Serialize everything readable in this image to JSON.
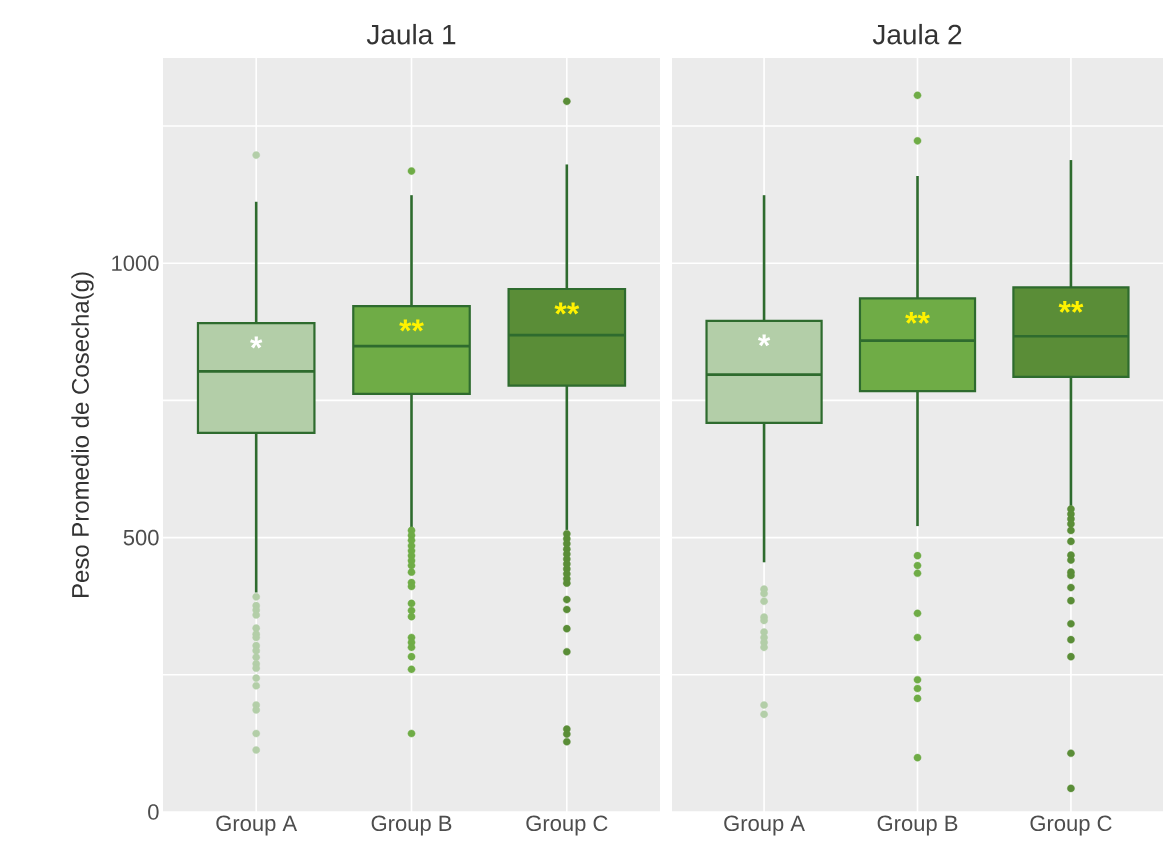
{
  "chart_data": [
    {
      "type": "box",
      "title": "Jaula 1",
      "ylabel": "Peso Promedio de Cosecha(g)",
      "categories": [
        "Group  A",
        "Group  B",
        "Group  C"
      ],
      "colors": [
        "#b3cea8",
        "#6fac46",
        "#5a8d37"
      ],
      "boxes": [
        {
          "low": 400,
          "q1": 691,
          "median": 803,
          "q3": 891,
          "high": 1112,
          "outliers": [
            1197,
            392,
            376,
            368,
            359,
            335,
            324,
            318,
            303,
            294,
            282,
            270,
            262,
            244,
            230,
            195,
            186,
            143,
            113
          ]
        },
        {
          "low": 519,
          "q1": 762,
          "median": 849,
          "q3": 922,
          "high": 1124,
          "outliers": [
            1168,
            513,
            504,
            495,
            485,
            476,
            467,
            458,
            449,
            437,
            418,
            411,
            380,
            367,
            356,
            318,
            309,
            300,
            283,
            260,
            143
          ]
        },
        {
          "low": 514,
          "q1": 777,
          "median": 869,
          "q3": 953,
          "high": 1180,
          "outliers": [
            1295,
            507,
            498,
            489,
            479,
            470,
            461,
            452,
            443,
            434,
            425,
            417,
            387,
            369,
            334,
            292,
            151,
            142,
            128
          ]
        }
      ],
      "annotations": [
        "*",
        "**",
        "**"
      ],
      "ylim": [
        0,
        1374
      ],
      "yticks": [
        0,
        {
          "value": 250,
          "label": null
        },
        500,
        {
          "value": 750,
          "label": null
        },
        1000,
        {
          "value": 1250,
          "label": null
        }
      ],
      "grid": true
    },
    {
      "type": "box",
      "title": "Jaula 2",
      "categories": [
        "Group  A",
        "Group  B",
        "Group  C"
      ],
      "colors": [
        "#b3cea8",
        "#6fac46",
        "#5a8d37"
      ],
      "boxes": [
        {
          "low": 455,
          "q1": 709,
          "median": 797,
          "q3": 895,
          "high": 1124,
          "outliers": [
            406,
            398,
            384,
            355,
            349,
            328,
            318,
            309,
            300,
            195,
            178
          ]
        },
        {
          "low": 521,
          "q1": 767,
          "median": 859,
          "q3": 936,
          "high": 1159,
          "outliers": [
            1306,
            1223,
            467,
            449,
            435,
            362,
            318,
            241,
            225,
            207,
            99
          ]
        },
        {
          "low": 558,
          "q1": 793,
          "median": 867,
          "q3": 956,
          "high": 1188,
          "outliers": [
            552,
            543,
            534,
            525,
            513,
            493,
            468,
            459,
            437,
            431,
            409,
            385,
            343,
            314,
            283,
            107,
            43
          ]
        }
      ],
      "annotations": [
        "*",
        "**",
        "**"
      ],
      "ylim": [
        0,
        1374
      ],
      "yticks": [
        0,
        {
          "value": 250,
          "label": null
        },
        500,
        {
          "value": 750,
          "label": null
        },
        1000,
        {
          "value": 1250,
          "label": null
        }
      ],
      "grid": true,
      "tick_labels": "x"
    }
  ]
}
